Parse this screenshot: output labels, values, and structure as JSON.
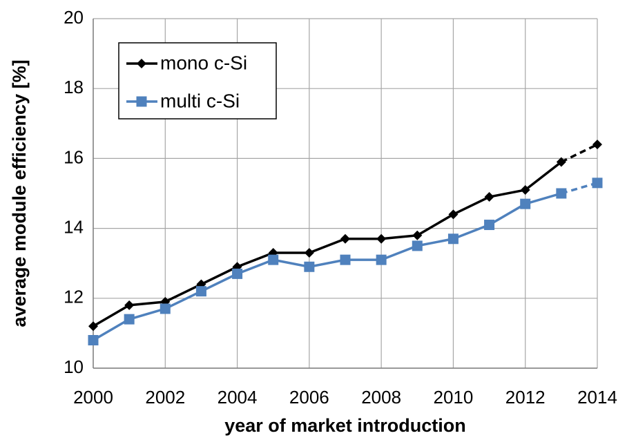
{
  "chart_data": {
    "type": "line",
    "x_label": "year of market introduction",
    "y_label": "average module efficiency [%]",
    "x": [
      2000,
      2001,
      2002,
      2003,
      2004,
      2005,
      2006,
      2007,
      2008,
      2009,
      2010,
      2011,
      2012,
      2013,
      2014
    ],
    "series": [
      {
        "name": "mono c-Si",
        "color": "#000000",
        "marker": "diamond",
        "values": [
          11.2,
          11.8,
          11.9,
          12.4,
          12.9,
          13.3,
          13.3,
          13.7,
          13.7,
          13.8,
          14.4,
          14.9,
          15.1,
          15.9,
          16.4
        ]
      },
      {
        "name": "multi c-Si",
        "color": "#4f81bd",
        "marker": "square",
        "values": [
          10.8,
          11.4,
          11.7,
          12.2,
          12.7,
          13.1,
          12.9,
          13.1,
          13.1,
          13.5,
          13.7,
          14.1,
          14.7,
          15.0,
          15.3
        ]
      }
    ],
    "projection_start": 2013,
    "xlim": [
      2000,
      2014
    ],
    "xticks": [
      2000,
      2002,
      2004,
      2006,
      2008,
      2010,
      2012,
      2014
    ],
    "ylim": [
      10,
      20
    ],
    "yticks": [
      10,
      12,
      14,
      16,
      18,
      20
    ],
    "grid": true,
    "legend": "upper left"
  }
}
